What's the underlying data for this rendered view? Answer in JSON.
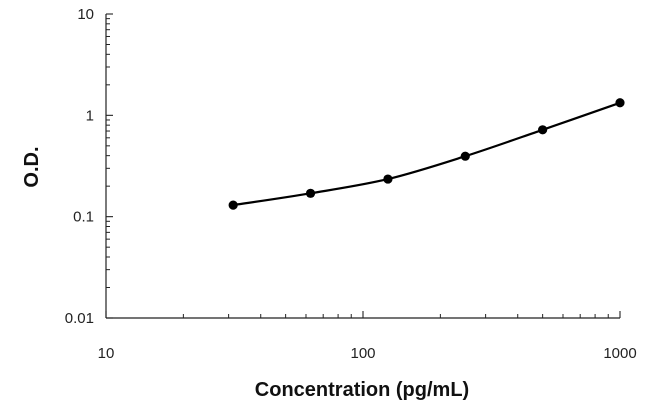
{
  "chart_data": {
    "type": "scatter",
    "title": "",
    "xlabel": "Concentration (pg/mL)",
    "ylabel": "O.D.",
    "xscale": "log",
    "yscale": "log",
    "xlim": [
      10,
      1000
    ],
    "ylim": [
      0.01,
      10
    ],
    "x_ticks": [
      "10",
      "100",
      "1000"
    ],
    "y_ticks": [
      "0.01",
      "0.1",
      "1",
      "10"
    ],
    "grid": false,
    "legend": "none",
    "series": [
      {
        "x": [
          31.25,
          62.5,
          125,
          250,
          500,
          1000
        ],
        "y": [
          0.13,
          0.17,
          0.235,
          0.395,
          0.72,
          1.33
        ],
        "markers": true,
        "line": "smooth",
        "color": "#000000"
      }
    ]
  }
}
